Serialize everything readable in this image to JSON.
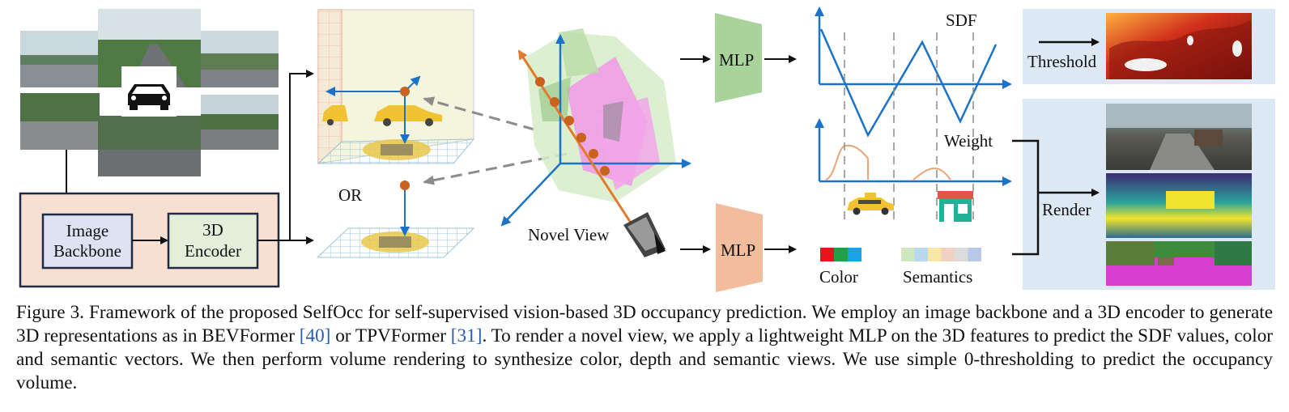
{
  "diagram": {
    "labels": {
      "image_backbone": "Image\nBackbone",
      "encoder_3d": "3D\nEncoder",
      "or": "OR",
      "novel_view": "Novel View",
      "mlp_top": "MLP",
      "mlp_bottom": "MLP",
      "sdf": "SDF",
      "weight": "Weight",
      "threshold": "Threshold",
      "render": "Render",
      "color": "Color",
      "semantics": "Semantics"
    },
    "colors": {
      "encoder_panel": "#f7e0d2",
      "encoder_panel_border": "#1f2a44",
      "backbone_box": "#dde3f3",
      "encoder_box": "#e3efdb",
      "mlp_top": "#a9d39b",
      "mlp_bottom": "#f2bd9c",
      "axis_blue": "#1a73c8",
      "ray_orange": "#e37a2e",
      "sample_point": "#c8621c",
      "output_panel": "#dde8f5",
      "color_swatches": [
        "#e8141b",
        "#1fa14a",
        "#1aa3e6"
      ],
      "semantic_swatches": [
        "#cfe6c0",
        "#b9d7ef",
        "#f8e7a5",
        "#f0d2c4",
        "#dcdcdc",
        "#b7c8e8"
      ]
    }
  },
  "caption": {
    "figure_label": "Figure 3.",
    "text_1": "Framework of the proposed SelfOcc for self-supervised vision-based 3D occupancy prediction. We employ an image backbone and a 3D encoder to generate 3D representations as in BEVFormer ",
    "ref_1": "[40]",
    "text_2": " or TPVFormer ",
    "ref_2": "[31]",
    "text_3": ". To render a novel view, we apply a lightweight MLP on the 3D features to predict the SDF values, color and semantic vectors. We then perform volume rendering to synthesize color, depth and semantic views. We use simple 0-thresholding to predict the occupancy volume."
  }
}
